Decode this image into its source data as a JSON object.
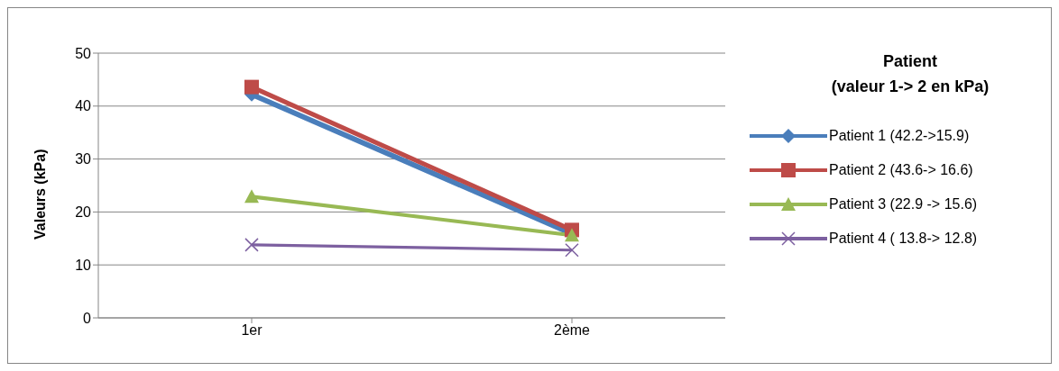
{
  "chart_data": {
    "type": "line",
    "ylabel": "Valeurs (kPa)",
    "legend_title": "Patient\n(valeur 1-> 2 en kPa)",
    "categories": [
      "1er",
      "2ème"
    ],
    "series": [
      {
        "name": "Patient 1 (42.2->15.9)",
        "color": "#4a7ebb",
        "marker": "diamond",
        "values": [
          42.2,
          15.9
        ]
      },
      {
        "name": "Patient 2 (43.6-> 16.6)",
        "color": "#be4b48",
        "marker": "square",
        "values": [
          43.6,
          16.6
        ]
      },
      {
        "name": "Patient 3 (22.9 -> 15.6)",
        "color": "#98b954",
        "marker": "triangle",
        "values": [
          22.9,
          15.6
        ]
      },
      {
        "name": "Patient 4 ( 13.8-> 12.8)",
        "color": "#7d60a0",
        "marker": "cross",
        "values": [
          13.8,
          12.8
        ]
      }
    ],
    "ylim": [
      0,
      50
    ],
    "yticks": [
      0,
      10,
      20,
      30,
      40,
      50
    ],
    "grid": "y",
    "legend": "right",
    "line_style": "solid"
  }
}
